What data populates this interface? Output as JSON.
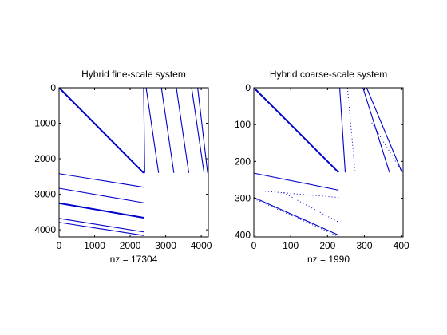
{
  "chart_data": [
    {
      "type": "spy",
      "title": "Hybrid fine-scale system",
      "xlabel": "nz = 17304",
      "xlim": [
        0,
        4200
      ],
      "ylim": [
        0,
        4200
      ],
      "xticks": [
        0,
        1000,
        2000,
        3000,
        4000
      ],
      "yticks": [
        0,
        1000,
        2000,
        3000,
        4000
      ],
      "xtick_labels": [
        "0",
        "1000",
        "2000",
        "3000",
        "4000"
      ],
      "ytick_labels": [
        "0",
        "1000",
        "2000",
        "3000",
        "4000"
      ],
      "marker_color": "#0000cc",
      "segments": [
        {
          "x": [
            0,
            2380
          ],
          "y": [
            0,
            2400
          ],
          "dense": true
        },
        {
          "x": [
            2380,
            2410
          ],
          "y": [
            0,
            2400
          ]
        },
        {
          "x": [
            2450,
            2800
          ],
          "y": [
            0,
            2400
          ]
        },
        {
          "x": [
            2880,
            3230
          ],
          "y": [
            0,
            2400
          ]
        },
        {
          "x": [
            3300,
            3650
          ],
          "y": [
            0,
            2400
          ]
        },
        {
          "x": [
            3730,
            4080
          ],
          "y": [
            0,
            2400
          ]
        },
        {
          "x": [
            3900,
            4180
          ],
          "y": [
            0,
            2400
          ]
        },
        {
          "x": [
            0,
            2380
          ],
          "y": [
            2420,
            2800
          ]
        },
        {
          "x": [
            0,
            2380
          ],
          "y": [
            2830,
            3240
          ]
        },
        {
          "x": [
            0,
            2380
          ],
          "y": [
            3250,
            3660
          ],
          "dense": true
        },
        {
          "x": [
            0,
            2380
          ],
          "y": [
            3680,
            4060
          ]
        },
        {
          "x": [
            0,
            2380
          ],
          "y": [
            3790,
            4160
          ]
        }
      ]
    },
    {
      "type": "spy",
      "title": "Hybrid coarse-scale system",
      "xlabel": "nz = 1990",
      "xlim": [
        0,
        405
      ],
      "ylim": [
        0,
        405
      ],
      "xticks": [
        0,
        100,
        200,
        300,
        400
      ],
      "yticks": [
        0,
        100,
        200,
        300,
        400
      ],
      "xtick_labels": [
        "0",
        "100",
        "200",
        "300",
        "400"
      ],
      "ytick_labels": [
        "0",
        "100",
        "200",
        "300",
        "400"
      ],
      "marker_color": "#0000cc",
      "segments": [
        {
          "x": [
            0,
            230
          ],
          "y": [
            0,
            230
          ],
          "dense": true
        },
        {
          "x": [
            233,
            248
          ],
          "y": [
            0,
            230
          ]
        },
        {
          "x": [
            254,
            275
          ],
          "y": [
            0,
            232
          ],
          "dotted": true
        },
        {
          "x": [
            296,
            368
          ],
          "y": [
            0,
            230
          ]
        },
        {
          "x": [
            306,
            402
          ],
          "y": [
            0,
            230
          ]
        },
        {
          "x": [
            320,
            403
          ],
          "y": [
            95,
            230
          ],
          "dotted": true
        },
        {
          "x": [
            0,
            230
          ],
          "y": [
            232,
            278
          ]
        },
        {
          "x": [
            30,
            230
          ],
          "y": [
            281,
            298
          ],
          "dotted": true
        },
        {
          "x": [
            0,
            230
          ],
          "y": [
            298,
            400
          ]
        },
        {
          "x": [
            0,
            230
          ],
          "y": [
            301,
            404
          ],
          "dotted": true
        },
        {
          "x": [
            80,
            230
          ],
          "y": [
            285,
            365
          ],
          "dotted": true
        }
      ]
    }
  ]
}
